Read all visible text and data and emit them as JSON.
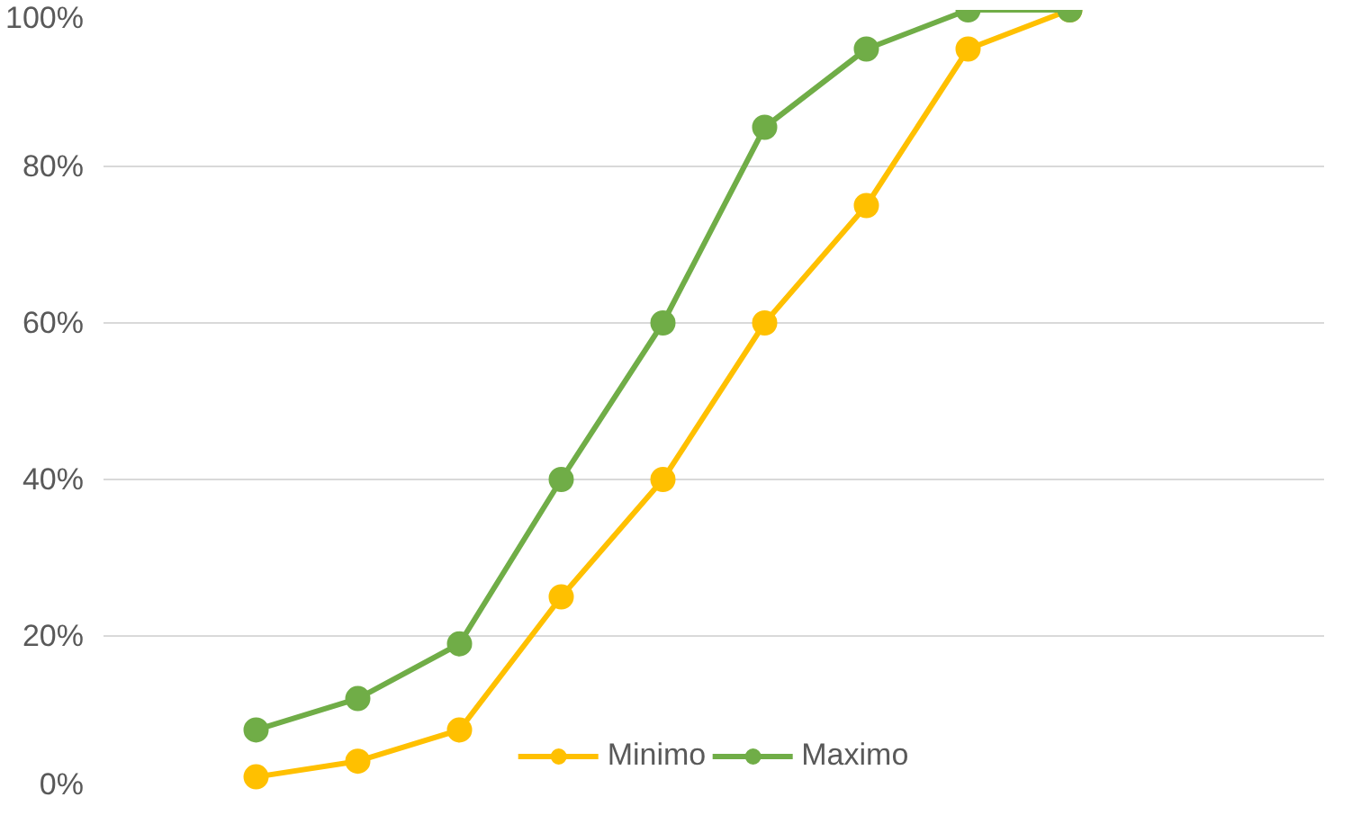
{
  "chart_data": {
    "type": "line",
    "categories": [
      null,
      null,
      null,
      null,
      null,
      null,
      null,
      null,
      null
    ],
    "series": [
      {
        "name": "Minimo",
        "color": "#ffc000",
        "values": [
          2,
          4,
          8,
          25,
          40,
          60,
          75,
          95,
          100
        ]
      },
      {
        "name": "Maximo",
        "color": "#70ad47",
        "values": [
          8,
          12,
          19,
          40,
          60,
          85,
          95,
          100,
          100
        ]
      }
    ],
    "ylim": [
      0,
      100
    ],
    "yticks": [
      {
        "value": 0,
        "label": "0%"
      },
      {
        "value": 20,
        "label": "20%"
      },
      {
        "value": 40,
        "label": "40%"
      },
      {
        "value": 60,
        "label": "60%"
      },
      {
        "value": 80,
        "label": "80%"
      },
      {
        "value": 100,
        "label": "100%"
      }
    ],
    "grid": "y",
    "legend": "bottom",
    "marker": "circle",
    "line_style": "solid"
  }
}
